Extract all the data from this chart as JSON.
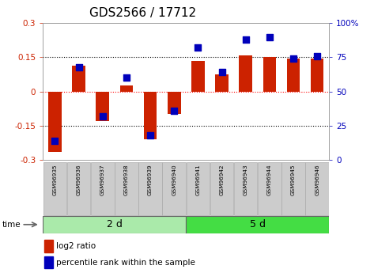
{
  "title": "GDS2566 / 17712",
  "samples": [
    "GSM96935",
    "GSM96936",
    "GSM96937",
    "GSM96938",
    "GSM96939",
    "GSM96940",
    "GSM96941",
    "GSM96942",
    "GSM96943",
    "GSM96944",
    "GSM96945",
    "GSM96946"
  ],
  "log2_ratio": [
    -0.265,
    0.115,
    -0.13,
    0.025,
    -0.21,
    -0.1,
    0.135,
    0.075,
    0.16,
    0.15,
    0.145,
    0.145
  ],
  "percentile_rank": [
    14,
    68,
    32,
    60,
    18,
    36,
    82,
    64,
    88,
    90,
    74,
    76
  ],
  "groups": [
    {
      "label": "2 d",
      "start": 0,
      "end": 6,
      "color": "#aaeaaa"
    },
    {
      "label": "5 d",
      "start": 6,
      "end": 12,
      "color": "#44dd44"
    }
  ],
  "bar_color": "#CC2200",
  "dot_color": "#0000BB",
  "ylim_left": [
    -0.3,
    0.3
  ],
  "ylim_right": [
    0,
    100
  ],
  "yticks_left": [
    -0.3,
    -0.15,
    0,
    0.15,
    0.3
  ],
  "yticks_right": [
    0,
    25,
    50,
    75,
    100
  ],
  "hlines": [
    -0.15,
    0.0,
    0.15
  ],
  "background_color": "#ffffff",
  "tick_label_color_left": "#CC2200",
  "tick_label_color_right": "#0000BB",
  "title_fontsize": 11,
  "tick_fontsize": 7.5,
  "bar_width": 0.55,
  "dot_size": 28,
  "box_facecolor": "#cccccc",
  "box_edgecolor": "#aaaaaa"
}
